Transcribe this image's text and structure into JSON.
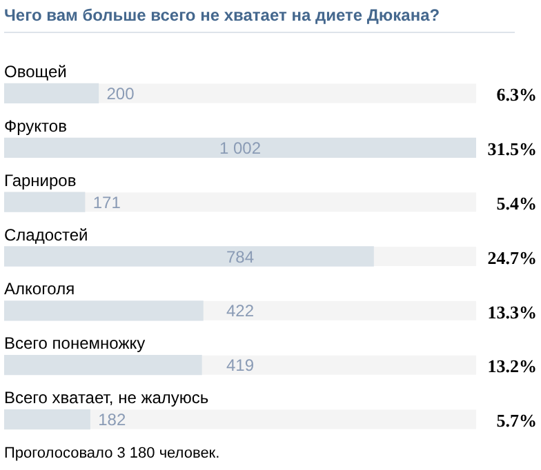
{
  "chart_data": {
    "type": "bar",
    "orientation": "horizontal",
    "title": "Чего вам больше всего не хватает на диете Дюкана?",
    "categories": [
      "Овощей",
      "Фруктов",
      "Гарниров",
      "Сладостей",
      "Алкоголя",
      "Всего понемножку",
      "Всего хватает, не жалуюсь"
    ],
    "values": [
      200,
      1002,
      171,
      784,
      422,
      419,
      182
    ],
    "color": "#dae2e8",
    "value_labels": [
      "200",
      "1 002",
      "171",
      "784",
      "422",
      "419",
      "182"
    ],
    "annotations": [
      "6.3%",
      "31.5%",
      "5.4%",
      "24.7%",
      "13.3%",
      "13.2%",
      "5.7%",
      "Проголосовало 3 180 человек."
    ],
    "legend": false
  }
}
